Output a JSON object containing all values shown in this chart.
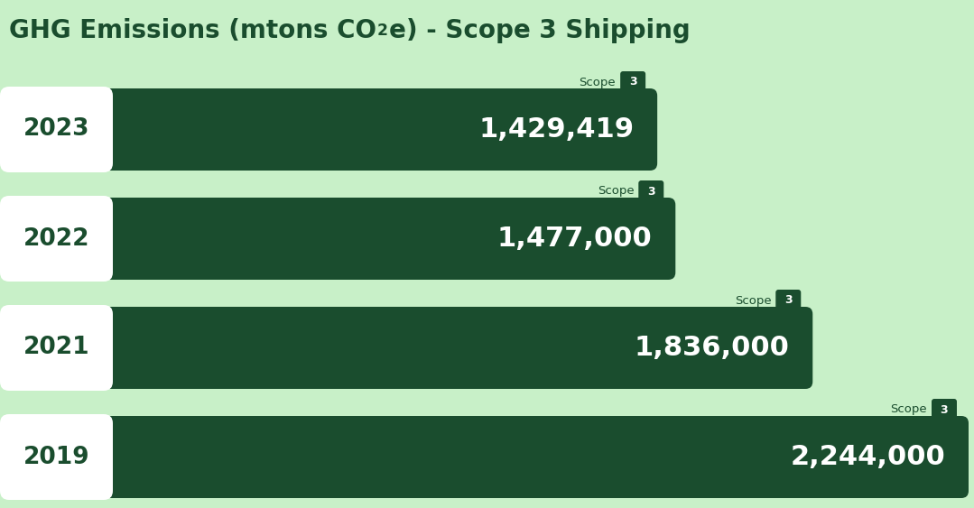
{
  "title_part1": "GHG Emissions (mtons CO",
  "title_sub": "2",
  "title_part2": "e) - Scope 3 Shipping",
  "background_color": "#c8f0c8",
  "bar_color": "#1a4d2e",
  "bar_label_color": "#ffffff",
  "year_label_color": "#1a4d2e",
  "title_color": "#1a4d2e",
  "rows": [
    {
      "year": "2023",
      "value": 1429419,
      "label": "1,429,419"
    },
    {
      "year": "2022",
      "value": 1477000,
      "label": "1,477,000"
    },
    {
      "year": "2021",
      "value": 1836000,
      "label": "1,836,000"
    },
    {
      "year": "2019",
      "value": 2244000,
      "label": "2,244,000"
    }
  ],
  "max_value": 2244000,
  "scope_label": "Scope",
  "scope_num": "3",
  "year_box_color": "#ffffff"
}
